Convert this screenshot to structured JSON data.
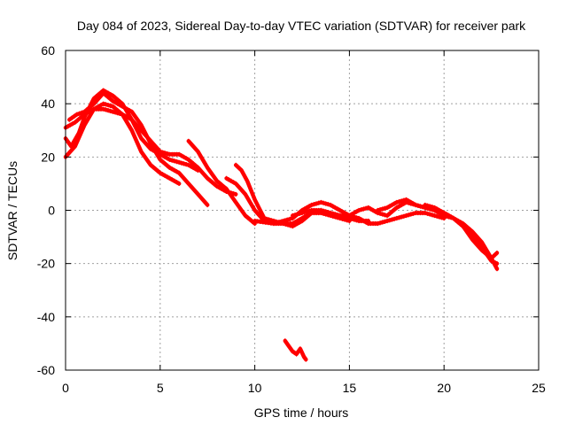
{
  "chart_data": {
    "type": "scatter",
    "title": "Day 084 of 2023, Sidereal Day-to-day VTEC variation (SDTVAR) for receiver park",
    "xlabel": "GPS time / hours",
    "ylabel": "SDTVAR / TECUs",
    "xlim": [
      0,
      25
    ],
    "ylim": [
      -60,
      60
    ],
    "xticks": [
      0,
      5,
      10,
      15,
      20,
      25
    ],
    "yticks": [
      -60,
      -40,
      -20,
      0,
      20,
      40,
      60
    ],
    "xtick_labels": [
      "0",
      "5",
      "10",
      "15",
      "20",
      "25"
    ],
    "ytick_labels": [
      "-60",
      "-40",
      "-20",
      "0",
      "20",
      "40",
      "60"
    ],
    "grid": true,
    "series": [
      {
        "name": "track-1",
        "x": [
          0.0,
          0.5,
          1.0,
          1.5,
          2.0,
          2.5,
          3.0,
          3.5,
          4.0,
          4.5,
          5.0,
          5.5,
          6.0
        ],
        "y": [
          20,
          24,
          32,
          38,
          40,
          39,
          36,
          30,
          22,
          17,
          14,
          12,
          10
        ]
      },
      {
        "name": "track-2",
        "x": [
          0.0,
          0.3,
          0.7,
          1.0,
          1.5,
          2.0,
          2.5,
          3.0,
          3.5,
          4.0,
          4.5,
          5.0,
          5.5,
          6.0,
          6.5,
          7.0
        ],
        "y": [
          27,
          24,
          29,
          35,
          42,
          45,
          43,
          40,
          34,
          27,
          23,
          21,
          19,
          18,
          17,
          15
        ]
      },
      {
        "name": "track-3",
        "x": [
          0.0,
          0.5,
          1.0,
          1.5,
          2.0,
          2.5,
          3.0,
          3.5,
          4.0,
          4.5,
          5.0,
          5.5,
          6.0,
          6.5,
          7.0,
          7.5,
          8.0,
          8.5,
          9.0
        ],
        "y": [
          31,
          33,
          36,
          38,
          38,
          37,
          36,
          34,
          30,
          26,
          22,
          21,
          21,
          19,
          16,
          12,
          9,
          7,
          6
        ]
      },
      {
        "name": "track-4",
        "x": [
          0.2,
          0.6,
          1.0,
          1.5,
          2.0,
          2.5,
          3.0,
          3.5,
          4.0,
          4.5,
          5.0,
          5.5,
          6.0,
          6.5,
          7.0,
          7.5
        ],
        "y": [
          34,
          36,
          37,
          40,
          44,
          41,
          39,
          37,
          32,
          25,
          19,
          16,
          14,
          10,
          6,
          2
        ]
      },
      {
        "name": "track-5",
        "x": [
          6.5,
          7.0,
          7.5,
          8.0,
          8.5,
          9.0,
          9.5,
          10.0
        ],
        "y": [
          26,
          22,
          16,
          11,
          8,
          3,
          -2,
          -5
        ]
      },
      {
        "name": "track-6",
        "x": [
          8.5,
          9.0,
          9.5,
          10.0,
          10.5,
          11.0,
          11.5,
          12.0,
          12.5,
          13.0,
          13.5,
          14.0,
          14.5,
          15.0,
          15.5,
          16.0
        ],
        "y": [
          12,
          10,
          6,
          0,
          -4,
          -5,
          -5,
          -6,
          -4,
          -1,
          0,
          -1,
          -2,
          -3,
          -4,
          -4
        ]
      },
      {
        "name": "track-7",
        "x": [
          9.0,
          9.3,
          9.6,
          10.0,
          10.5,
          11.0,
          11.5,
          12.0,
          12.5,
          13.0,
          13.5,
          14.0,
          14.5,
          15.0
        ],
        "y": [
          17,
          15,
          11,
          4,
          -3,
          -4,
          -5,
          -5,
          -3,
          -1,
          -1,
          -2,
          -3,
          -4
        ]
      },
      {
        "name": "track-8",
        "x": [
          10.0,
          11.0,
          12.0,
          12.5,
          13.0,
          13.5,
          14.0,
          14.5,
          15.0,
          15.5,
          16.0,
          16.5,
          17.0,
          17.5,
          18.0,
          18.5,
          19.0,
          19.5,
          20.0
        ],
        "y": [
          -4,
          -5,
          -3,
          0,
          2,
          3,
          2,
          0,
          -2,
          -3,
          -5,
          -5,
          -4,
          -3,
          -2,
          -1,
          -1,
          -2,
          -3
        ]
      },
      {
        "name": "track-9",
        "x": [
          12.0,
          12.5,
          13.0,
          13.5,
          14.0,
          14.5,
          15.0,
          15.5,
          16.0,
          16.5,
          17.0,
          17.5,
          18.0,
          18.5,
          19.0,
          19.5,
          20.0,
          20.5,
          21.0,
          21.5,
          22.0,
          22.5,
          22.8
        ],
        "y": [
          -2,
          -1,
          0,
          0,
          -1,
          -2,
          -2,
          0,
          1,
          -1,
          -2,
          1,
          3,
          2,
          1,
          0,
          -2,
          -3,
          -5,
          -8,
          -12,
          -18,
          -22
        ]
      },
      {
        "name": "track-10",
        "x": [
          16.5,
          17.0,
          17.5,
          18.0,
          18.5,
          19.0,
          19.5,
          20.0,
          20.5,
          21.0,
          21.5,
          22.0,
          22.5,
          22.8
        ],
        "y": [
          0,
          1,
          3,
          4,
          2,
          1,
          0,
          -1,
          -3,
          -6,
          -11,
          -15,
          -18,
          -16
        ]
      },
      {
        "name": "track-11",
        "x": [
          19.0,
          19.5,
          20.0,
          20.5,
          21.0,
          21.5,
          22.0,
          22.5,
          22.8
        ],
        "y": [
          2,
          1,
          -1,
          -3,
          -6,
          -10,
          -14,
          -19,
          -20
        ]
      },
      {
        "name": "track-12",
        "x": [
          11.6,
          11.8,
          12.0,
          12.2,
          12.4,
          12.6,
          12.7
        ],
        "y": [
          -49,
          -51,
          -53,
          -54,
          -52,
          -55,
          -56
        ]
      }
    ]
  }
}
